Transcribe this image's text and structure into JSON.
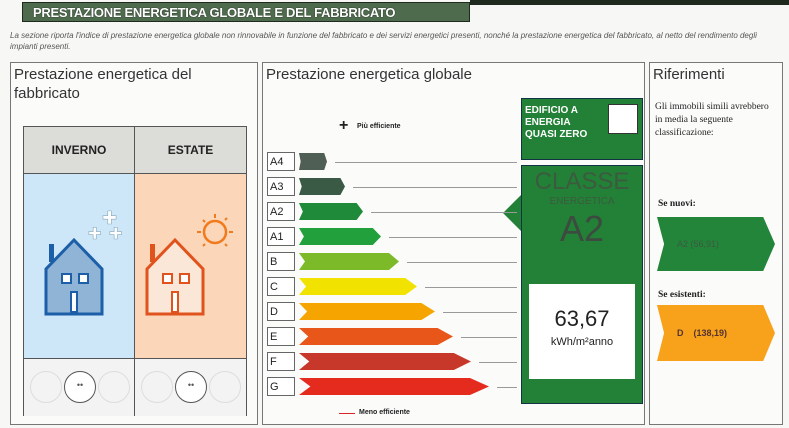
{
  "header": {
    "title": "PRESTAZIONE ENERGETICA GLOBALE E DEL FABBRICATO"
  },
  "intro": "La sezione riporta l'indice di prestazione energetica globale non rinnovabile in funzione del fabbricato e dei servizi energetici presenti, nonché la prestazione energetica del fabbricato, al netto del rendimento degli impianti presenti.",
  "fabbricato": {
    "title": "Prestazione energetica del fabbricato",
    "columns": [
      "INVERNO",
      "ESTATE"
    ],
    "rating": {
      "inverno": "neutral",
      "estate": "neutral"
    },
    "icons": [
      "house-winter-icon",
      "house-summer-icon"
    ]
  },
  "globale": {
    "title": "Prestazione energetica globale",
    "top_label": "Più efficiente",
    "bottom_label": "Meno efficiente",
    "classes": [
      {
        "label": "A4",
        "color": "#4f5f55"
      },
      {
        "label": "A3",
        "color": "#3b5a45"
      },
      {
        "label": "A2",
        "color": "#1f8a3a"
      },
      {
        "label": "A1",
        "color": "#22a03c"
      },
      {
        "label": "B",
        "color": "#7cba2a"
      },
      {
        "label": "C",
        "color": "#f2e200"
      },
      {
        "label": "D",
        "color": "#f6a500"
      },
      {
        "label": "E",
        "color": "#e8561a"
      },
      {
        "label": "F",
        "color": "#c8382a"
      },
      {
        "label": "G",
        "color": "#e42b1e"
      }
    ],
    "nzeb": "EDIFICIO A ENERGIA QUASI ZERO",
    "nzeb_checked": false,
    "class_label": "CLASSE",
    "class_sub": "ENERGETICA",
    "class_value": "A2",
    "value": "63,67",
    "unit": "kWh/m²anno"
  },
  "riferimenti": {
    "title": "Riferimenti",
    "text": "Gli immobili simili avrebbero in media la seguente classificazione:",
    "nuovi_label": "Se nuovi:",
    "nuovi_value": "A2 (56,91)",
    "nuovi_color": "#22853a",
    "esistenti_label": "Se esistenti:",
    "esistenti_value": "D    (138,19)",
    "esistenti_color": "#f7a21a"
  }
}
